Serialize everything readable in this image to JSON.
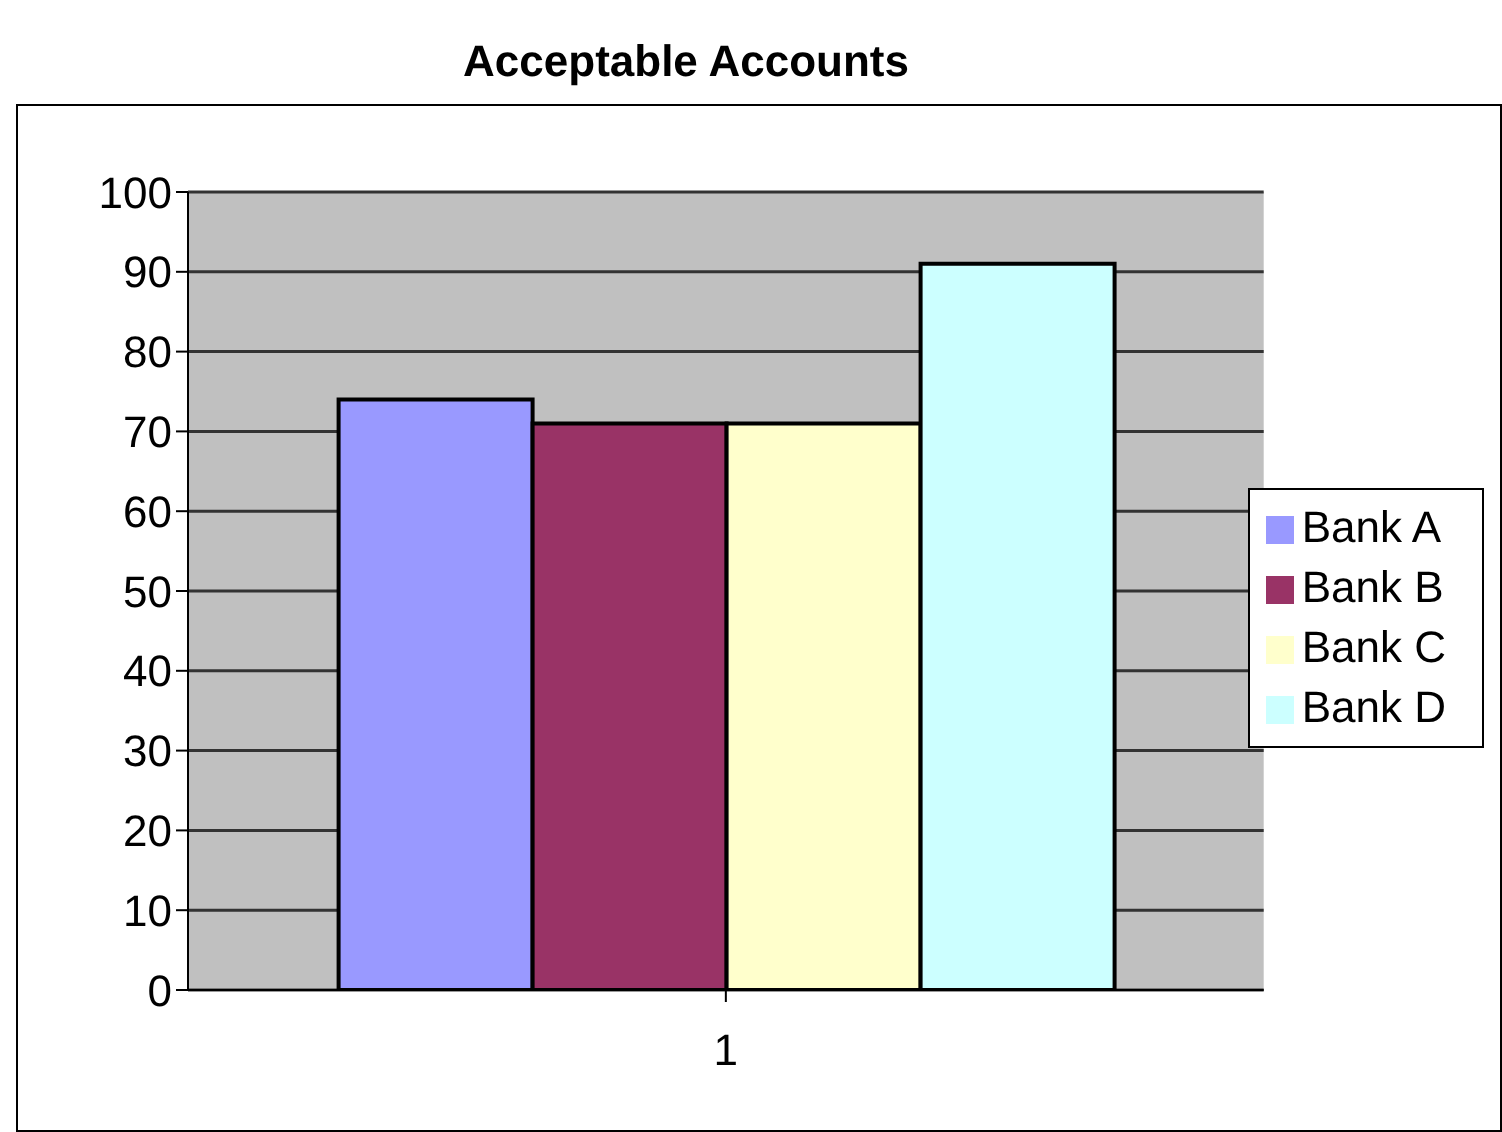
{
  "chart_data": {
    "type": "bar",
    "title": "Acceptable Accounts",
    "categories": [
      "1"
    ],
    "series": [
      {
        "name": "Bank A",
        "color": "#9999ff",
        "values": [
          74
        ]
      },
      {
        "name": "Bank B",
        "color": "#993366",
        "values": [
          71
        ]
      },
      {
        "name": "Bank C",
        "color": "#ffffcc",
        "values": [
          71
        ]
      },
      {
        "name": "Bank D",
        "color": "#ccffff",
        "values": [
          91
        ]
      }
    ],
    "ylim": [
      0,
      100
    ],
    "yticks": [
      0,
      10,
      20,
      30,
      40,
      50,
      60,
      70,
      80,
      90,
      100
    ],
    "grid": "y",
    "legend": "right"
  }
}
